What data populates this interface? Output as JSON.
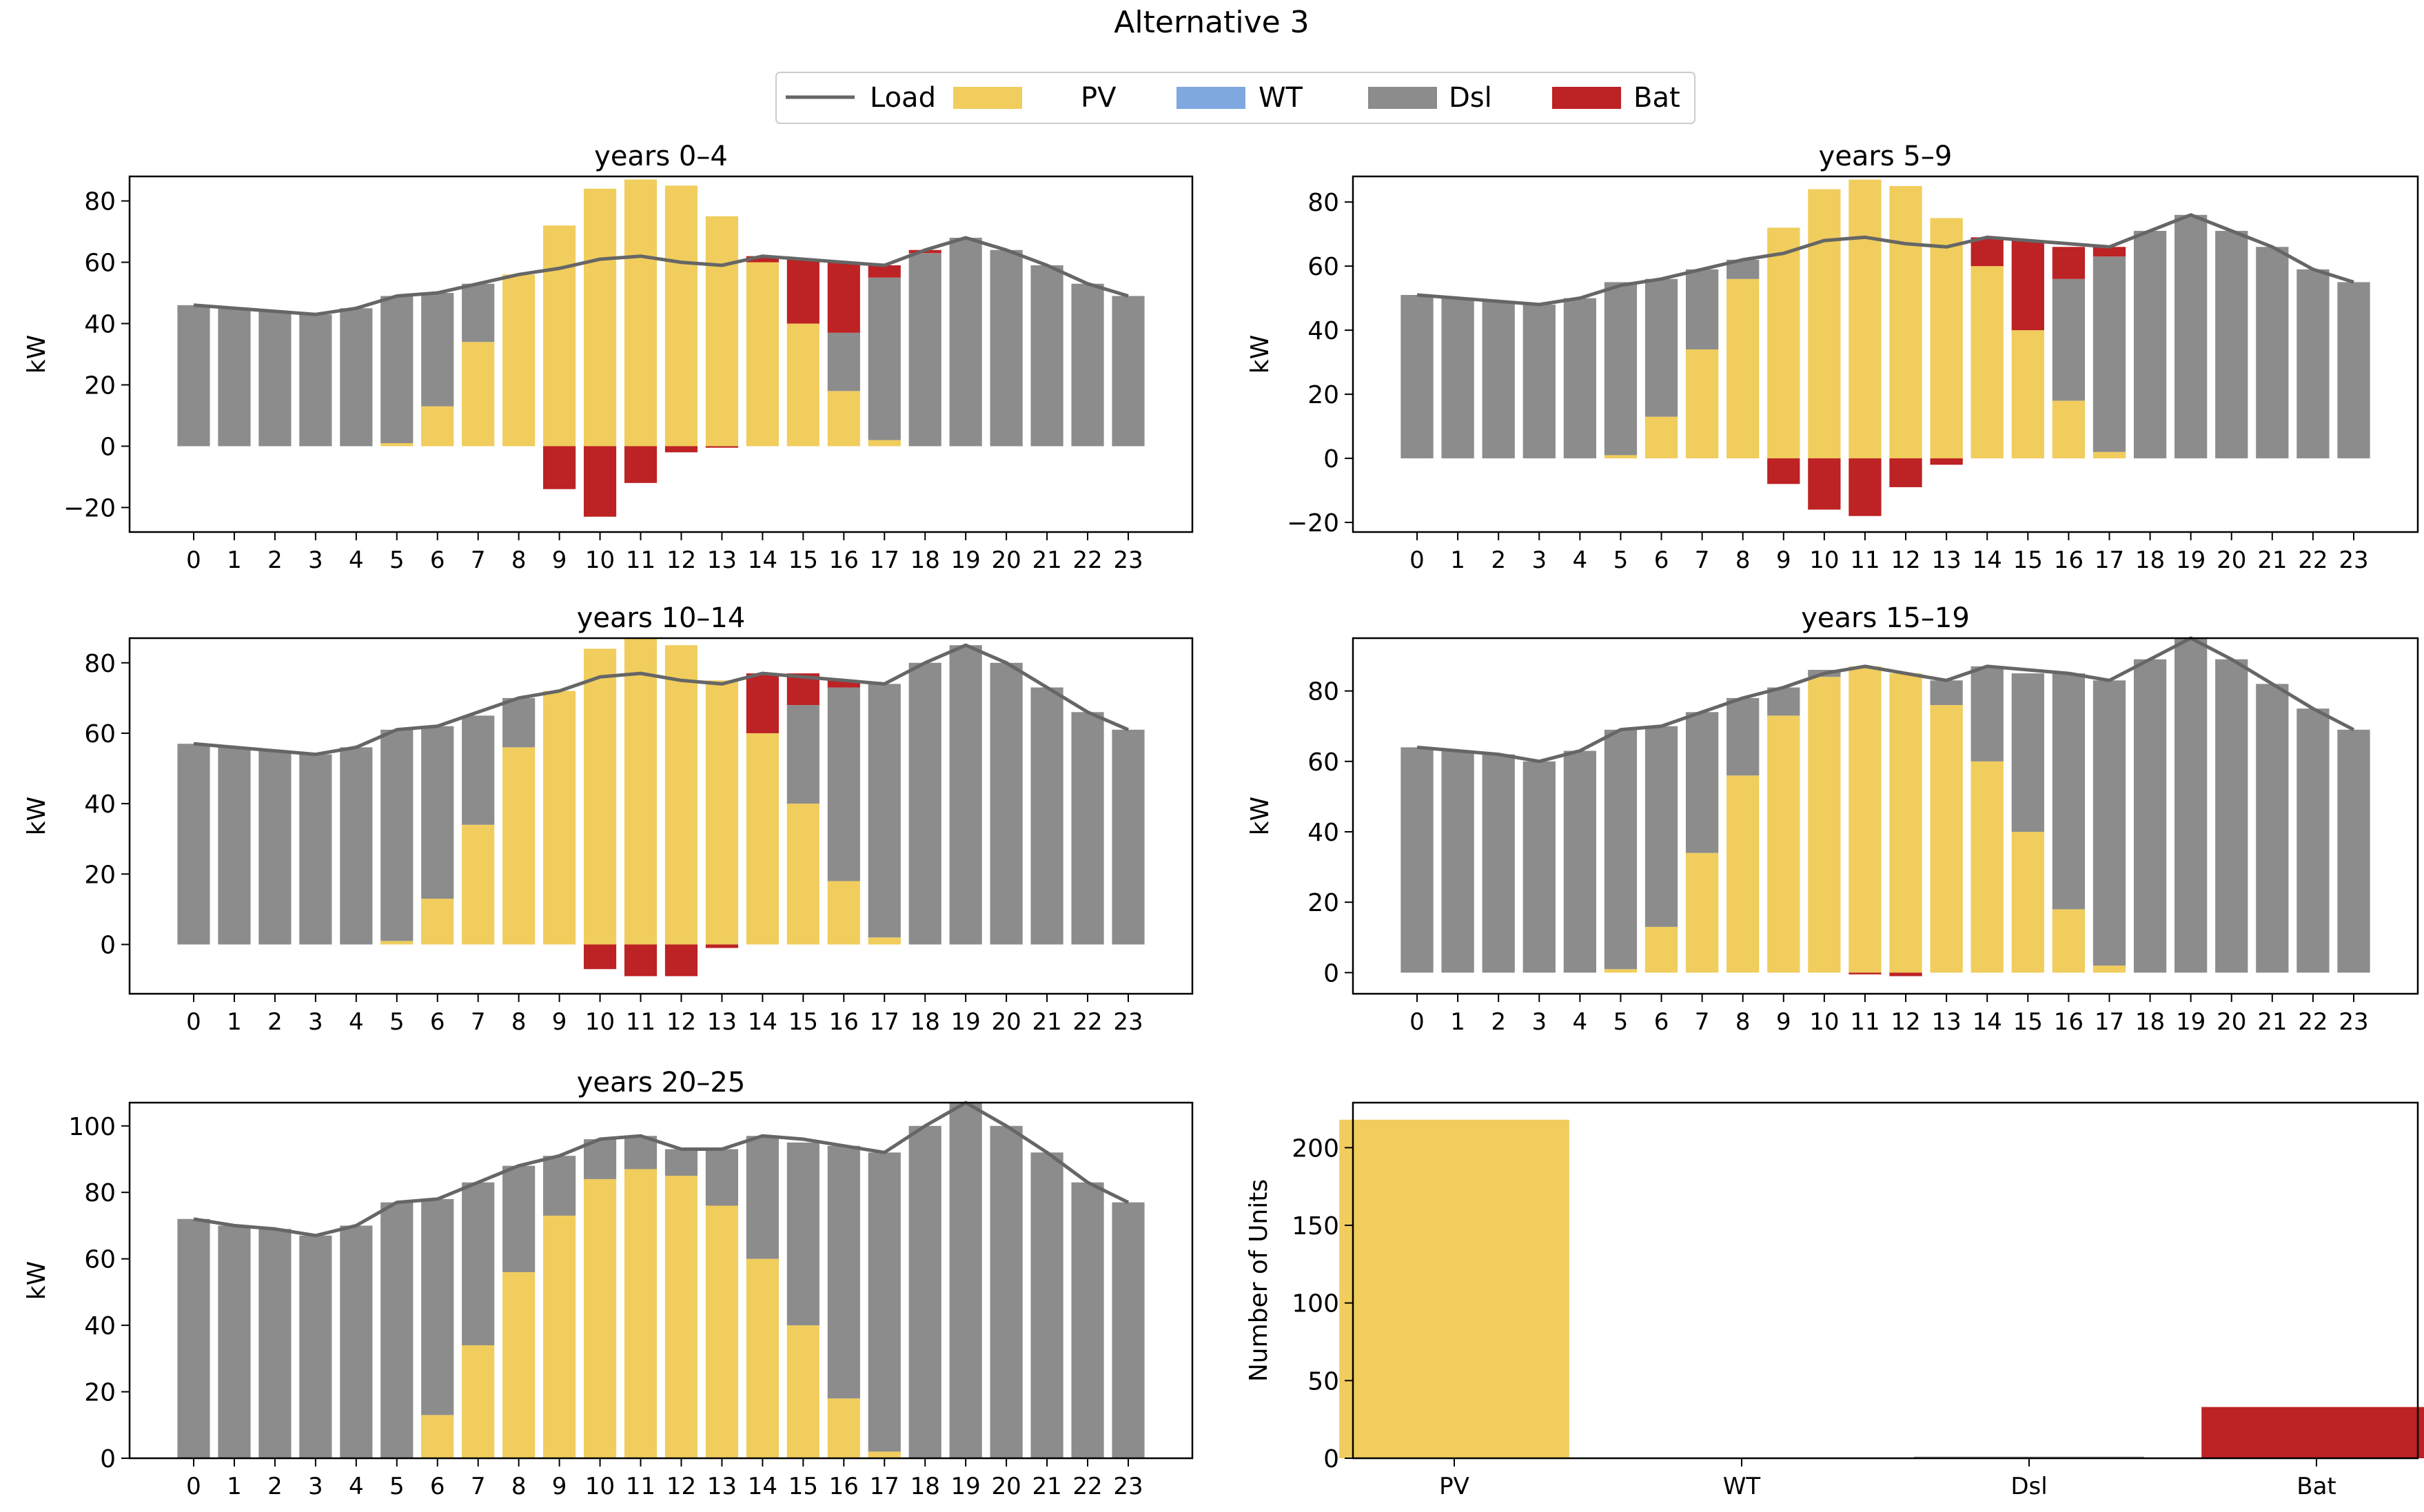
{
  "figure_title": "Alternative 3",
  "colors": {
    "Load": "#666666",
    "PV": "#f0cd5d",
    "WT": "#7fa7e0",
    "Dsl": "#8c8c8c",
    "Bat": "#bd2224"
  },
  "legend": [
    {
      "key": "Load",
      "label": "Load",
      "kind": "line"
    },
    {
      "key": "PV",
      "label": "PV",
      "kind": "patch"
    },
    {
      "key": "WT",
      "label": "WT",
      "kind": "patch"
    },
    {
      "key": "Dsl",
      "label": "Dsl",
      "kind": "patch"
    },
    {
      "key": "Bat",
      "label": "Bat",
      "kind": "patch"
    }
  ],
  "chart_data": [
    {
      "type": "bar",
      "stacked": true,
      "title": "years 0–4",
      "ylabel": "kW",
      "xlabel": "",
      "categories": [
        "0",
        "1",
        "2",
        "3",
        "4",
        "5",
        "6",
        "7",
        "8",
        "9",
        "10",
        "11",
        "12",
        "13",
        "14",
        "15",
        "16",
        "17",
        "18",
        "19",
        "20",
        "21",
        "22",
        "23"
      ],
      "ylim": [
        -28,
        88
      ],
      "yticks": [
        -20,
        0,
        20,
        40,
        60,
        80
      ],
      "series": [
        {
          "name": "PV",
          "values": [
            0,
            0,
            0,
            0,
            0,
            1,
            13,
            34,
            56,
            72,
            84,
            87,
            85,
            75,
            60,
            40,
            18,
            2,
            0,
            0,
            0,
            0,
            0,
            0
          ]
        },
        {
          "name": "Dsl",
          "values": [
            46,
            45,
            44,
            43,
            45,
            48,
            37,
            19,
            0,
            0,
            0,
            0,
            0,
            0,
            0,
            0,
            19,
            53,
            63,
            68,
            64,
            59,
            53,
            49
          ]
        },
        {
          "name": "Bat",
          "values": [
            0,
            0,
            0,
            0,
            0,
            0,
            0,
            0,
            0,
            -14,
            -23,
            -12,
            -2,
            -0.5,
            2,
            21,
            23,
            4,
            1,
            0,
            0,
            0,
            0,
            0
          ]
        },
        {
          "name": "Load",
          "kind": "line",
          "values": [
            46,
            45,
            44,
            43,
            45,
            49,
            50,
            53,
            56,
            58,
            61,
            62,
            60,
            59,
            62,
            61,
            60,
            59,
            64,
            68,
            64,
            59,
            53,
            49
          ]
        }
      ]
    },
    {
      "type": "bar",
      "stacked": true,
      "title": "years 5–9",
      "ylabel": "kW",
      "xlabel": "",
      "categories": [
        "0",
        "1",
        "2",
        "3",
        "4",
        "5",
        "6",
        "7",
        "8",
        "9",
        "10",
        "11",
        "12",
        "13",
        "14",
        "15",
        "16",
        "17",
        "18",
        "19",
        "20",
        "21",
        "22",
        "23"
      ],
      "ylim": [
        -23,
        88
      ],
      "yticks": [
        -20,
        0,
        20,
        40,
        60,
        80
      ],
      "series": [
        {
          "name": "PV",
          "values": [
            0,
            0,
            0,
            0,
            0,
            1,
            13,
            34,
            56,
            72,
            84,
            87,
            85,
            75,
            60,
            40,
            18,
            2,
            0,
            0,
            0,
            0,
            0,
            0
          ]
        },
        {
          "name": "Dsl",
          "values": [
            51,
            50,
            49,
            48,
            50,
            54,
            43,
            25,
            6,
            0,
            0,
            0,
            0,
            0,
            0,
            0,
            38,
            61,
            71,
            76,
            71,
            66,
            59,
            55
          ]
        },
        {
          "name": "Bat",
          "values": [
            0,
            0,
            0,
            0,
            0,
            0,
            0,
            0,
            0,
            -8,
            -16,
            -18,
            -9,
            -2,
            9,
            28,
            10,
            3,
            0,
            0,
            0,
            0,
            0,
            0
          ]
        },
        {
          "name": "Load",
          "kind": "line",
          "values": [
            51,
            50,
            49,
            48,
            50,
            54,
            56,
            59,
            62,
            64,
            68,
            69,
            67,
            66,
            69,
            68,
            67,
            66,
            71,
            76,
            71,
            66,
            59,
            55
          ]
        }
      ]
    },
    {
      "type": "bar",
      "stacked": true,
      "title": "years 10–14",
      "ylabel": "kW",
      "xlabel": "",
      "categories": [
        "0",
        "1",
        "2",
        "3",
        "4",
        "5",
        "6",
        "7",
        "8",
        "9",
        "10",
        "11",
        "12",
        "13",
        "14",
        "15",
        "16",
        "17",
        "18",
        "19",
        "20",
        "21",
        "22",
        "23"
      ],
      "ylim": [
        -14,
        87
      ],
      "yticks": [
        0,
        20,
        40,
        60,
        80
      ],
      "series": [
        {
          "name": "PV",
          "values": [
            0,
            0,
            0,
            0,
            0,
            1,
            13,
            34,
            56,
            72,
            84,
            87,
            85,
            75,
            60,
            40,
            18,
            2,
            0,
            0,
            0,
            0,
            0,
            0
          ]
        },
        {
          "name": "Dsl",
          "values": [
            57,
            56,
            55,
            54,
            56,
            60,
            49,
            31,
            14,
            0,
            0,
            0,
            0,
            0,
            0,
            28,
            55,
            72,
            80,
            85,
            80,
            73,
            66,
            61
          ]
        },
        {
          "name": "Bat",
          "values": [
            0,
            0,
            0,
            0,
            0,
            0,
            0,
            0,
            0,
            0,
            -7,
            -9,
            -9,
            -1,
            17,
            9,
            2,
            0,
            0,
            0,
            0,
            0,
            0,
            0
          ]
        },
        {
          "name": "Load",
          "kind": "line",
          "values": [
            57,
            56,
            55,
            54,
            56,
            61,
            62,
            66,
            70,
            72,
            76,
            77,
            75,
            74,
            77,
            76,
            75,
            74,
            80,
            85,
            80,
            73,
            66,
            61
          ]
        }
      ]
    },
    {
      "type": "bar",
      "stacked": true,
      "title": "years 15–19",
      "ylabel": "kW",
      "xlabel": "",
      "categories": [
        "0",
        "1",
        "2",
        "3",
        "4",
        "5",
        "6",
        "7",
        "8",
        "9",
        "10",
        "11",
        "12",
        "13",
        "14",
        "15",
        "16",
        "17",
        "18",
        "19",
        "20",
        "21",
        "22",
        "23"
      ],
      "ylim": [
        -6,
        95
      ],
      "yticks": [
        0,
        20,
        40,
        60,
        80
      ],
      "series": [
        {
          "name": "PV",
          "values": [
            0,
            0,
            0,
            0,
            0,
            1,
            13,
            34,
            56,
            73,
            84,
            87,
            85,
            76,
            60,
            40,
            18,
            2,
            0,
            0,
            0,
            0,
            0,
            0
          ]
        },
        {
          "name": "Dsl",
          "values": [
            64,
            63,
            62,
            60,
            63,
            68,
            57,
            40,
            22,
            8,
            2,
            0,
            0,
            7,
            27,
            45,
            67,
            81,
            89,
            95,
            89,
            82,
            75,
            69
          ]
        },
        {
          "name": "Bat",
          "values": [
            0,
            0,
            0,
            0,
            0,
            0,
            0,
            0,
            0,
            0,
            0,
            -0.5,
            -1,
            0,
            0,
            0,
            0,
            0,
            0,
            0,
            0,
            0,
            0,
            0
          ]
        },
        {
          "name": "Load",
          "kind": "line",
          "values": [
            64,
            63,
            62,
            60,
            63,
            69,
            70,
            74,
            78,
            81,
            85,
            87,
            85,
            83,
            87,
            86,
            85,
            83,
            89,
            95,
            89,
            82,
            75,
            69
          ]
        }
      ]
    },
    {
      "type": "bar",
      "stacked": true,
      "title": "years 20–25",
      "ylabel": "kW",
      "xlabel": "",
      "categories": [
        "0",
        "1",
        "2",
        "3",
        "4",
        "5",
        "6",
        "7",
        "8",
        "9",
        "10",
        "11",
        "12",
        "13",
        "14",
        "15",
        "16",
        "17",
        "18",
        "19",
        "20",
        "21",
        "22",
        "23"
      ],
      "ylim": [
        0,
        107
      ],
      "yticks": [
        0,
        20,
        40,
        60,
        80,
        100
      ],
      "series": [
        {
          "name": "PV",
          "values": [
            0,
            0,
            0,
            0,
            0,
            0,
            13,
            34,
            56,
            73,
            84,
            87,
            85,
            76,
            60,
            40,
            18,
            2,
            0,
            0,
            0,
            0,
            0,
            0
          ]
        },
        {
          "name": "Dsl",
          "values": [
            72,
            70,
            69,
            67,
            70,
            77,
            65,
            49,
            32,
            18,
            12,
            10,
            8,
            17,
            37,
            55,
            76,
            90,
            100,
            107,
            100,
            92,
            83,
            77
          ]
        },
        {
          "name": "Bat",
          "values": [
            0,
            0,
            0,
            0,
            0,
            0,
            0,
            0,
            0,
            0,
            0,
            0,
            0,
            0,
            0,
            0,
            0,
            0,
            0,
            0,
            0,
            0,
            0,
            0
          ]
        },
        {
          "name": "Load",
          "kind": "line",
          "values": [
            72,
            70,
            69,
            67,
            70,
            77,
            78,
            83,
            88,
            91,
            96,
            97,
            93,
            93,
            97,
            96,
            94,
            92,
            100,
            107,
            100,
            92,
            83,
            77
          ]
        }
      ]
    },
    {
      "type": "bar",
      "title": "",
      "ylabel": "Number of Units",
      "xlabel": "",
      "categories": [
        "PV",
        "WT",
        "Dsl",
        "Bat"
      ],
      "values": [
        218,
        0,
        1,
        33
      ],
      "bar_colors": [
        "#f0cd5d",
        "#7fa7e0",
        "#8c8c8c",
        "#bd2224"
      ],
      "ylim": [
        0,
        229
      ],
      "yticks": [
        0,
        50,
        100,
        150,
        200
      ]
    }
  ]
}
